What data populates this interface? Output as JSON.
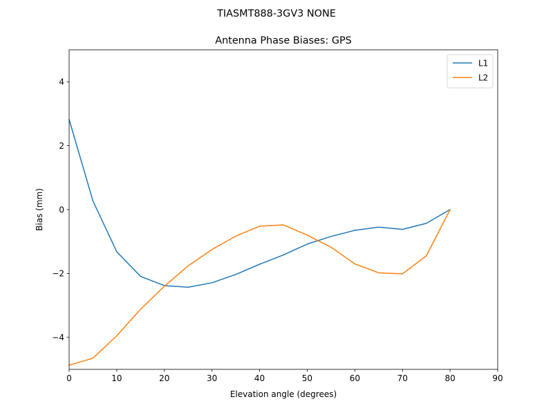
{
  "chart_data": {
    "type": "line",
    "suptitle": "TIASMT888-3GV3  NONE",
    "title": "Antenna Phase Biases: GPS",
    "xlabel": "Elevation angle (degrees)",
    "ylabel": "Bias (mm)",
    "xlim": [
      0,
      90
    ],
    "ylim": [
      -5,
      5
    ],
    "xticks": [
      0,
      10,
      20,
      30,
      40,
      50,
      60,
      70,
      80,
      90
    ],
    "yticks": [
      -4,
      -2,
      0,
      2,
      4
    ],
    "ytick_labels": [
      "−4",
      "−2",
      "0",
      "2",
      "4"
    ],
    "grid": false,
    "legend_position": "top-right",
    "x": [
      0,
      5,
      10,
      15,
      20,
      25,
      30,
      35,
      40,
      45,
      50,
      55,
      60,
      65,
      70,
      75,
      80
    ],
    "series": [
      {
        "name": "L1",
        "color": "#1f77b4",
        "values": [
          2.82,
          0.27,
          -1.32,
          -2.09,
          -2.38,
          -2.43,
          -2.29,
          -2.03,
          -1.71,
          -1.42,
          -1.08,
          -0.84,
          -0.65,
          -0.55,
          -0.62,
          -0.43,
          0.0
        ]
      },
      {
        "name": "L2",
        "color": "#ff7f0e",
        "values": [
          -4.87,
          -4.65,
          -3.95,
          -3.12,
          -2.4,
          -1.76,
          -1.25,
          -0.83,
          -0.52,
          -0.48,
          -0.8,
          -1.18,
          -1.7,
          -1.98,
          -2.01,
          -1.45,
          0.0
        ]
      }
    ]
  }
}
